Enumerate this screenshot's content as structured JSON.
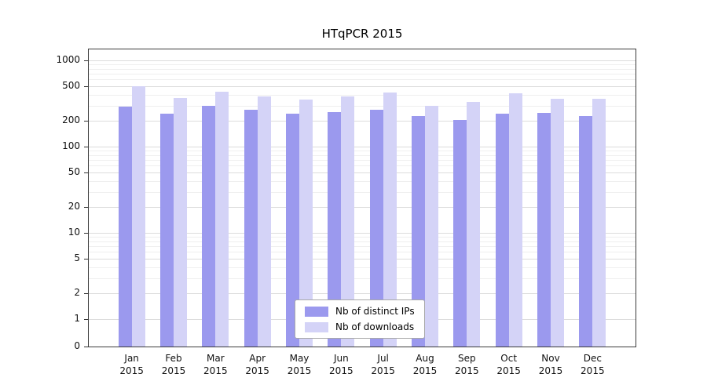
{
  "chart_data": {
    "type": "bar",
    "title": "HTqPCR 2015",
    "year": "2015",
    "categories": [
      "Jan",
      "Feb",
      "Mar",
      "Apr",
      "May",
      "Jun",
      "Jul",
      "Aug",
      "Sep",
      "Oct",
      "Nov",
      "Dec"
    ],
    "series": [
      {
        "name": "Nb of distinct IPs",
        "color": "#9b99ee",
        "values": [
          290,
          240,
          300,
          265,
          240,
          250,
          265,
          225,
          205,
          240,
          245,
          225
        ]
      },
      {
        "name": "Nb of downloads",
        "color": "#d4d3f7",
        "values": [
          500,
          365,
          430,
          385,
          350,
          385,
          425,
          300,
          330,
          415,
          360,
          360
        ]
      }
    ],
    "y_ticks": [
      0,
      1,
      2,
      5,
      10,
      20,
      50,
      100,
      200,
      500,
      1000
    ],
    "y_scale": "symlog",
    "ylim": [
      0,
      1300
    ],
    "xlabel": "",
    "ylabel": "",
    "grid": true,
    "legend_position": "bottom-center"
  }
}
